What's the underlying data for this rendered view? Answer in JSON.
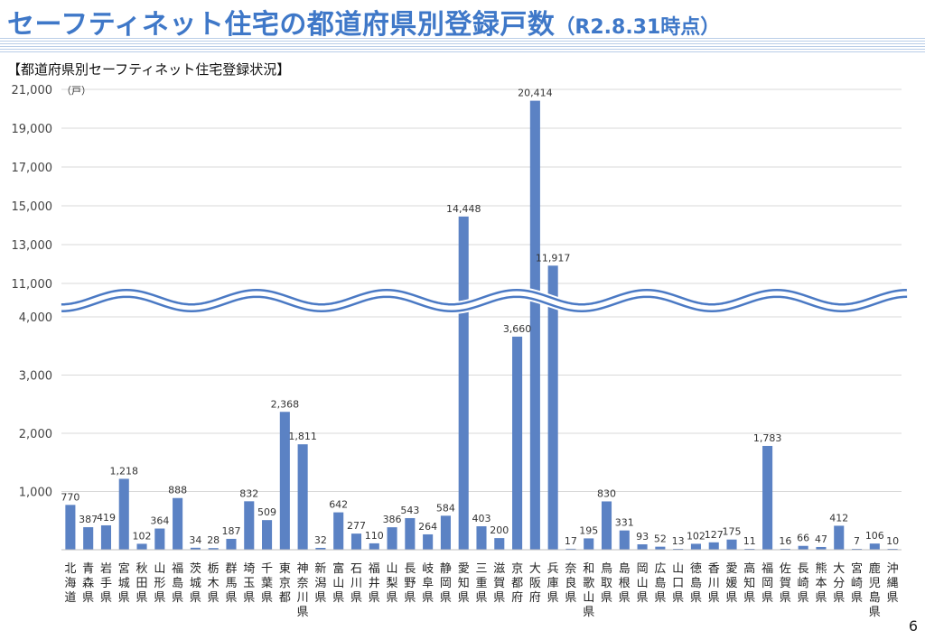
{
  "header": {
    "title": "セーフティネット住宅の都道府県別登録戸数",
    "title_date": "（R2.8.31時点）"
  },
  "subtitle": "【都道府県別セーフティネット住宅登録状況】",
  "page_number": "6",
  "colors": {
    "bar": "#5b82c4",
    "title": "#3f78c8",
    "break_line": "#4a79c4"
  },
  "chart_data": {
    "type": "bar",
    "unit_label": "（戸）",
    "categories": [
      "北海道",
      "青森県",
      "岩手県",
      "宮城県",
      "秋田県",
      "山形県",
      "福島県",
      "茨城県",
      "栃木県",
      "群馬県",
      "埼玉県",
      "千葉県",
      "東京都",
      "神奈川県",
      "新潟県",
      "富山県",
      "石川県",
      "福井県",
      "山梨県",
      "長野県",
      "岐阜県",
      "静岡県",
      "愛知県",
      "三重県",
      "滋賀県",
      "京都府",
      "大阪府",
      "兵庫県",
      "奈良県",
      "和歌山県",
      "鳥取県",
      "島根県",
      "岡山県",
      "広島県",
      "山口県",
      "徳島県",
      "香川県",
      "愛媛県",
      "高知県",
      "福岡県",
      "佐賀県",
      "長崎県",
      "熊本県",
      "大分県",
      "宮崎県",
      "鹿児島県",
      "沖縄県"
    ],
    "values": [
      770,
      387,
      419,
      1218,
      102,
      364,
      888,
      34,
      28,
      187,
      832,
      509,
      2368,
      1811,
      32,
      642,
      277,
      110,
      386,
      543,
      264,
      584,
      14448,
      403,
      200,
      3660,
      20414,
      11917,
      17,
      195,
      830,
      331,
      93,
      52,
      13,
      102,
      127,
      175,
      11,
      1783,
      16,
      66,
      47,
      412,
      7,
      106,
      10
    ],
    "data_labels": [
      "770",
      "387",
      "419",
      "1,218",
      "102",
      "364",
      "888",
      "34",
      "28",
      "187",
      "832",
      "509",
      "2,368",
      "1,811",
      "32",
      "642",
      "277",
      "110",
      "386",
      "543",
      "264",
      "584",
      "14,448",
      "403",
      "200",
      "3,660",
      "20,414",
      "11,917",
      "17",
      "195",
      "830",
      "331",
      "93",
      "52",
      "13",
      "102",
      "127",
      "175",
      "11",
      "1,783",
      "16",
      "66",
      "47",
      "412",
      "7",
      "106",
      "10"
    ],
    "y_ticks_lower": [
      {
        "value": 1000,
        "label": "1,000"
      },
      {
        "value": 2000,
        "label": "2,000"
      },
      {
        "value": 3000,
        "label": "3,000"
      },
      {
        "value": 4000,
        "label": "4,000"
      }
    ],
    "y_ticks_upper": [
      {
        "value": 11000,
        "label": "11,000"
      },
      {
        "value": 13000,
        "label": "13,000"
      },
      {
        "value": 15000,
        "label": "15,000"
      },
      {
        "value": 17000,
        "label": "17,000"
      },
      {
        "value": 19000,
        "label": "19,000"
      },
      {
        "value": 21000,
        "label": "21,000"
      }
    ],
    "axis_break": {
      "lower_max": 4000,
      "upper_min": 11000
    },
    "ylim": [
      0,
      21000
    ],
    "grid": true,
    "legend": "none"
  }
}
